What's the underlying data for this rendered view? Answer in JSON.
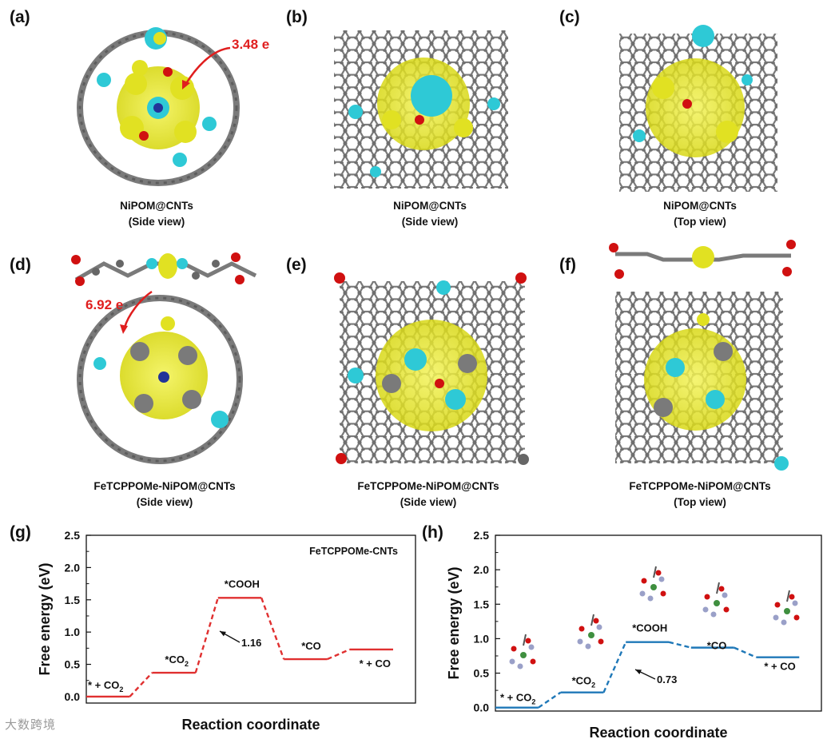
{
  "panels": {
    "a": {
      "letter": "(a)",
      "caption_line1": "NiPOM@CNTs",
      "caption_line2": "(Side view)",
      "charge": "3.48 e"
    },
    "b": {
      "letter": "(b)",
      "caption_line1": "NiPOM@CNTs",
      "caption_line2": "(Side view)"
    },
    "c": {
      "letter": "(c)",
      "caption_line1": "NiPOM@CNTs",
      "caption_line2": "(Top view)"
    },
    "d": {
      "letter": "(d)",
      "caption_line1": "FeTCPPOMe-NiPOM@CNTs",
      "caption_line2": "(Side view)",
      "charge": "6.92 e"
    },
    "e": {
      "letter": "(e)",
      "caption_line1": "FeTCPPOMe-NiPOM@CNTs",
      "caption_line2": "(Side view)"
    },
    "f": {
      "letter": "(f)",
      "caption_line1": "FeTCPPOMe-NiPOM@CNTs",
      "caption_line2": "(Top view)"
    },
    "g": {
      "letter": "(g)"
    },
    "h": {
      "letter": "(h)"
    }
  },
  "colors": {
    "charge_accum": "#e6e61a",
    "charge_deplete": "#2ec9d6",
    "carbon": "#7a7a7a",
    "oxygen": "#d01010",
    "g_line": "#e03030",
    "h_line": "#1f78b8",
    "annotation_red": "#e01e1e"
  },
  "chart_data": [
    {
      "type": "line",
      "panel": "g",
      "title": "FeTCPPOMe-CNTs",
      "xlabel": "Reaction coordinate",
      "ylabel": "Free energy (eV)",
      "ylim": [
        -0.1,
        2.5
      ],
      "yticks": [
        "0.0",
        "0.5",
        "1.0",
        "1.5",
        "2.0",
        "2.5"
      ],
      "states": [
        {
          "label": "* + CO",
          "label_sub": "2",
          "value": 0.0
        },
        {
          "label": "*CO",
          "label_sub": "2",
          "value": 0.37
        },
        {
          "label": "*COOH",
          "label_sub": "",
          "value": 1.53
        },
        {
          "label": "*CO",
          "label_sub": "",
          "value": 0.58
        },
        {
          "label": "* + CO",
          "label_sub": "",
          "value": 0.73
        }
      ],
      "barrier_label": "1.16",
      "series_color": "#e03030"
    },
    {
      "type": "line",
      "panel": "h",
      "xlabel": "Reaction coordinate",
      "ylabel": "Free energy (eV)",
      "ylim": [
        -0.05,
        2.5
      ],
      "yticks": [
        "0.0",
        "0.5",
        "1.0",
        "1.5",
        "2.0",
        "2.5"
      ],
      "states": [
        {
          "label": "* + CO",
          "label_sub": "2",
          "value": 0.0
        },
        {
          "label": "*CO",
          "label_sub": "2",
          "value": 0.22
        },
        {
          "label": "*COOH",
          "label_sub": "",
          "value": 0.95
        },
        {
          "label": "*CO",
          "label_sub": "",
          "value": 0.87
        },
        {
          "label": "* + CO",
          "label_sub": "",
          "value": 0.73
        }
      ],
      "barrier_label": "0.73",
      "series_color": "#1f78b8"
    }
  ],
  "watermark": "大数跨境"
}
